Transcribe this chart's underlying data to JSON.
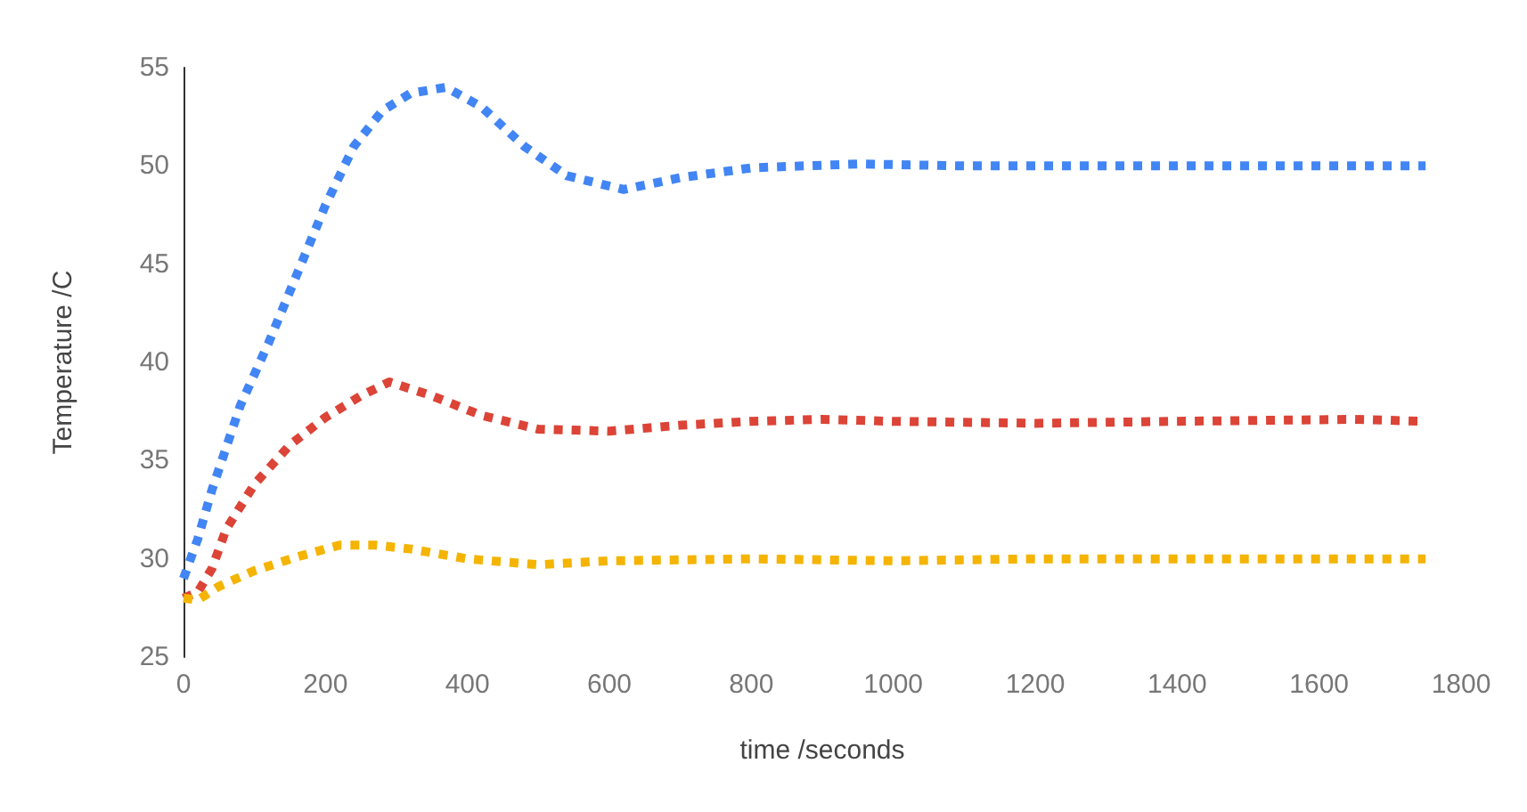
{
  "chart_data": {
    "type": "line",
    "xlabel": "time /seconds",
    "ylabel": "Temperature /C",
    "xlim": [
      0,
      1800
    ],
    "xticks": [
      0,
      200,
      400,
      600,
      800,
      1000,
      1200,
      1400,
      1600,
      1800
    ],
    "ylim": [
      25,
      55
    ],
    "yticks": [
      25,
      30,
      35,
      40,
      45,
      50,
      55
    ],
    "grid": false,
    "marker": "none",
    "line_style": "dotted",
    "series": [
      {
        "color": "#4285f4",
        "x": [
          0,
          20,
          40,
          80,
          120,
          160,
          200,
          240,
          280,
          320,
          370,
          420,
          480,
          540,
          620,
          700,
          800,
          950,
          1100,
          1300,
          1500,
          1750
        ],
        "values": [
          29,
          31,
          33.5,
          37.8,
          41,
          44.5,
          48,
          51,
          52.8,
          53.7,
          54,
          53,
          51,
          49.5,
          48.8,
          49.4,
          49.9,
          50.1,
          50,
          50,
          50,
          50
        ]
      },
      {
        "color": "#db4437",
        "x": [
          0,
          20,
          40,
          60,
          100,
          150,
          200,
          250,
          290,
          350,
          420,
          500,
          600,
          700,
          800,
          900,
          1000,
          1200,
          1400,
          1650,
          1750
        ],
        "values": [
          28,
          28.3,
          29.5,
          31.5,
          33.8,
          35.8,
          37.2,
          38.3,
          39,
          38.3,
          37.3,
          36.6,
          36.5,
          36.8,
          37,
          37.1,
          37,
          36.9,
          37,
          37.1,
          37
        ]
      },
      {
        "color": "#f4b400",
        "x": [
          0,
          20,
          50,
          100,
          160,
          220,
          270,
          320,
          400,
          500,
          600,
          800,
          1000,
          1200,
          1400,
          1750
        ],
        "values": [
          28,
          27.9,
          28.6,
          29.4,
          30.1,
          30.7,
          30.7,
          30.5,
          30,
          29.7,
          29.9,
          30,
          29.9,
          30,
          30,
          30
        ]
      }
    ]
  }
}
